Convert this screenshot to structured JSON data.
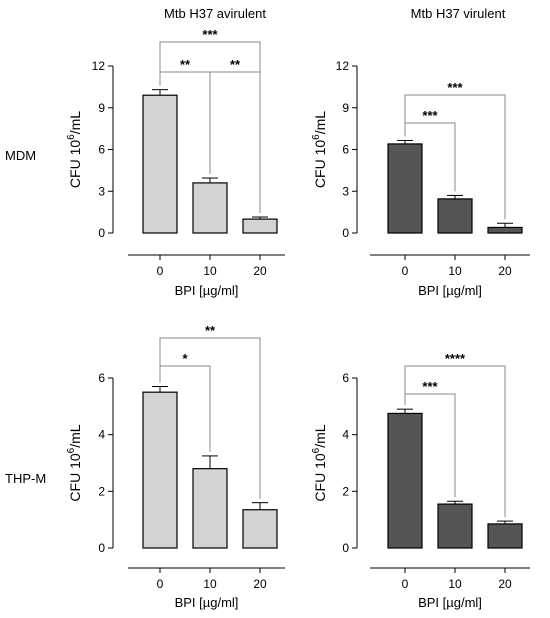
{
  "column_titles": [
    "Mtb H37 avirulent",
    "Mtb H37 virulent"
  ],
  "row_labels": [
    "MDM",
    "THP-M"
  ],
  "chart_data": [
    {
      "type": "bar",
      "row": "MDM",
      "column": "Mtb H37 avirulent",
      "categories": [
        "0",
        "10",
        "20"
      ],
      "values": [
        9.9,
        3.6,
        1.0
      ],
      "errors": [
        0.4,
        0.35,
        0.15
      ],
      "ylim": [
        0,
        12
      ],
      "yticks": [
        0,
        3,
        6,
        9,
        12
      ],
      "ylabel": {
        "main": "CFU 10",
        "sup": "6",
        "rest": "/mL"
      },
      "xlabel": "BPI [µg/ml]",
      "bar_color": "#d3d3d3",
      "significance": [
        {
          "from": 0,
          "to": 2,
          "label": "***"
        },
        {
          "from": 0,
          "to": 1,
          "label": "**"
        },
        {
          "from": 1,
          "to": 2,
          "label": "**"
        }
      ]
    },
    {
      "type": "bar",
      "row": "MDM",
      "column": "Mtb H37 virulent",
      "categories": [
        "0",
        "10",
        "20"
      ],
      "values": [
        6.4,
        2.45,
        0.4
      ],
      "errors": [
        0.25,
        0.25,
        0.3
      ],
      "ylim": [
        0,
        12
      ],
      "yticks": [
        0,
        3,
        6,
        9,
        12
      ],
      "ylabel": {
        "main": "CFU 10",
        "sup": "6",
        "rest": "/mL"
      },
      "xlabel": "BPI [µg/ml]",
      "bar_color": "#555555",
      "significance": [
        {
          "from": 0,
          "to": 2,
          "label": "***"
        },
        {
          "from": 0,
          "to": 1,
          "label": "***"
        }
      ]
    },
    {
      "type": "bar",
      "row": "THP-M",
      "column": "Mtb H37 avirulent",
      "categories": [
        "0",
        "10",
        "20"
      ],
      "values": [
        5.5,
        2.8,
        1.35
      ],
      "errors": [
        0.2,
        0.45,
        0.25
      ],
      "ylim": [
        0,
        6
      ],
      "yticks": [
        0,
        2,
        4,
        6
      ],
      "ylabel": {
        "main": "CFU 10",
        "sup": "6",
        "rest": "/mL"
      },
      "xlabel": "BPI [µg/ml]",
      "bar_color": "#d3d3d3",
      "significance": [
        {
          "from": 0,
          "to": 2,
          "label": "**"
        },
        {
          "from": 0,
          "to": 1,
          "label": "*"
        }
      ]
    },
    {
      "type": "bar",
      "row": "THP-M",
      "column": "Mtb H37 virulent",
      "categories": [
        "0",
        "10",
        "20"
      ],
      "values": [
        4.75,
        1.55,
        0.85
      ],
      "errors": [
        0.15,
        0.1,
        0.1
      ],
      "ylim": [
        0,
        6
      ],
      "yticks": [
        0,
        2,
        4,
        6
      ],
      "ylabel": {
        "main": "CFU 10",
        "sup": "6",
        "rest": "/mL"
      },
      "xlabel": "BPI [µg/ml]",
      "bar_color": "#555555",
      "significance": [
        {
          "from": 0,
          "to": 2,
          "label": "****"
        },
        {
          "from": 0,
          "to": 1,
          "label": "***"
        }
      ]
    }
  ]
}
